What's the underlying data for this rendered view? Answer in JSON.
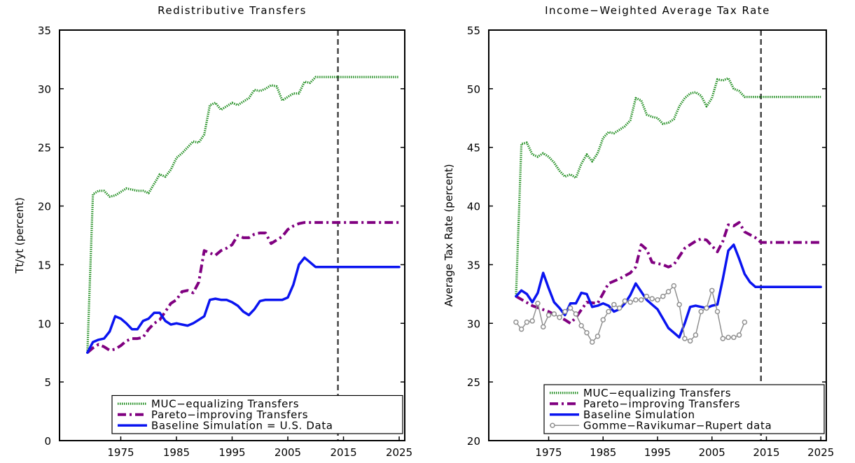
{
  "chart_data": [
    {
      "type": "line",
      "title": "Redistributive Transfers",
      "ylabel": "Tt/yt (percent)",
      "xlim": [
        1964,
        2026
      ],
      "xticks": [
        1975,
        1985,
        1995,
        2005,
        2015,
        2025
      ],
      "ylim": [
        0,
        35
      ],
      "yticks": [
        0,
        5,
        10,
        15,
        20,
        25,
        30,
        35
      ],
      "vline": 2014,
      "legend": "lower right",
      "series": [
        {
          "name": "MUC−equalizing Transfers",
          "color": "#1a8a1a",
          "style": "dotted",
          "x": [
            1969,
            1970,
            1971,
            1972,
            1973,
            1974,
            1975,
            1976,
            1977,
            1978,
            1979,
            1980,
            1981,
            1982,
            1983,
            1984,
            1985,
            1986,
            1987,
            1988,
            1989,
            1990,
            1991,
            1992,
            1993,
            1994,
            1995,
            1996,
            1997,
            1998,
            1999,
            2000,
            2001,
            2002,
            2003,
            2004,
            2005,
            2006,
            2007,
            2008,
            2009,
            2010,
            2011,
            2025
          ],
          "values": [
            7.5,
            21,
            21.3,
            21.3,
            20.8,
            20.9,
            21.2,
            21.5,
            21.4,
            21.3,
            21.3,
            21.1,
            21.9,
            22.7,
            22.5,
            23.1,
            24.1,
            24.5,
            25.0,
            25.5,
            25.4,
            26.1,
            28.6,
            28.8,
            28.2,
            28.5,
            28.8,
            28.6,
            28.9,
            29.2,
            29.9,
            29.8,
            30.0,
            30.3,
            30.2,
            29.0,
            29.3,
            29.6,
            29.6,
            30.6,
            30.5,
            31.0,
            31.0,
            31.0
          ]
        },
        {
          "name": "Pareto−improving Transfers",
          "color": "#800080",
          "style": "dashdot",
          "x": [
            1969,
            1970,
            1971,
            1972,
            1973,
            1974,
            1975,
            1976,
            1977,
            1978,
            1979,
            1980,
            1981,
            1982,
            1983,
            1984,
            1985,
            1986,
            1987,
            1988,
            1989,
            1990,
            1991,
            1992,
            1993,
            1994,
            1995,
            1996,
            1997,
            1998,
            1999,
            2000,
            2001,
            2002,
            2003,
            2004,
            2005,
            2006,
            2007,
            2008,
            2025
          ],
          "values": [
            7.5,
            7.9,
            8.2,
            8.0,
            7.7,
            7.8,
            8.1,
            8.5,
            8.7,
            8.7,
            8.8,
            9.5,
            10.0,
            10.3,
            11.0,
            11.7,
            12.0,
            12.7,
            12.8,
            12.6,
            13.5,
            16.2,
            16.0,
            15.8,
            16.2,
            16.4,
            16.7,
            17.5,
            17.3,
            17.3,
            17.6,
            17.7,
            17.7,
            16.8,
            17.1,
            17.4,
            18.0,
            18.3,
            18.5,
            18.6,
            18.6
          ]
        },
        {
          "name": "Baseline Simulation = U.S. Data",
          "color": "#0a14f0",
          "style": "solid",
          "x": [
            1969,
            1970,
            1971,
            1972,
            1973,
            1974,
            1975,
            1976,
            1977,
            1978,
            1979,
            1980,
            1981,
            1982,
            1983,
            1984,
            1985,
            1986,
            1987,
            1988,
            1989,
            1990,
            1991,
            1992,
            1993,
            1994,
            1995,
            1996,
            1997,
            1998,
            1999,
            2000,
            2001,
            2002,
            2003,
            2004,
            2005,
            2006,
            2007,
            2008,
            2009,
            2010,
            2011,
            2025
          ],
          "values": [
            7.5,
            8.4,
            8.6,
            8.7,
            9.3,
            10.6,
            10.4,
            10.0,
            9.5,
            9.5,
            10.2,
            10.4,
            10.9,
            10.9,
            10.2,
            9.9,
            10.0,
            9.9,
            9.8,
            10.0,
            10.3,
            10.6,
            12.0,
            12.1,
            12.0,
            12.0,
            11.8,
            11.5,
            11.0,
            10.7,
            11.2,
            11.9,
            12.0,
            12.0,
            12.0,
            12.0,
            12.2,
            13.3,
            15.0,
            15.6,
            15.2,
            14.8,
            14.8,
            14.8
          ]
        }
      ]
    },
    {
      "type": "line",
      "title": "Income−Weighted Average Tax Rate",
      "ylabel": "Average Tax Rate (percent)",
      "xlim": [
        1964,
        2026
      ],
      "xticks": [
        1975,
        1985,
        1995,
        2005,
        2015,
        2025
      ],
      "ylim": [
        20,
        55
      ],
      "yticks": [
        20,
        25,
        30,
        35,
        40,
        45,
        50,
        55
      ],
      "vline": 2014,
      "legend": "lower right",
      "series": [
        {
          "name": "MUC−equalizing Transfers",
          "color": "#1a8a1a",
          "style": "dotted",
          "x": [
            1969,
            1970,
            1971,
            1972,
            1973,
            1974,
            1975,
            1976,
            1977,
            1978,
            1979,
            1980,
            1981,
            1982,
            1983,
            1984,
            1985,
            1986,
            1987,
            1988,
            1989,
            1990,
            1991,
            1992,
            1993,
            1994,
            1995,
            1996,
            1997,
            1998,
            1999,
            2000,
            2001,
            2002,
            2003,
            2004,
            2005,
            2006,
            2007,
            2008,
            2009,
            2010,
            2011,
            2025
          ],
          "values": [
            32.3,
            45.3,
            45.4,
            44.4,
            44.2,
            44.5,
            44.2,
            43.7,
            43.0,
            42.5,
            42.7,
            42.4,
            43.6,
            44.4,
            43.8,
            44.5,
            45.8,
            46.3,
            46.2,
            46.5,
            46.8,
            47.3,
            49.2,
            49.0,
            47.8,
            47.6,
            47.5,
            47.0,
            47.1,
            47.4,
            48.5,
            49.2,
            49.6,
            49.7,
            49.4,
            48.5,
            49.2,
            50.8,
            50.7,
            50.9,
            50.0,
            49.8,
            49.3,
            49.3
          ]
        },
        {
          "name": "Pareto−improving Transfers",
          "color": "#800080",
          "style": "dashdot",
          "x": [
            1969,
            1972,
            1975,
            1978,
            1979,
            1980,
            1982,
            1984,
            1986,
            1988,
            1990,
            1991,
            1992,
            1993,
            1994,
            1996,
            1997,
            1998,
            2000,
            2002,
            2003,
            2004,
            2006,
            2007,
            2008,
            2009,
            2010,
            2011,
            2013,
            2014,
            2025
          ],
          "values": [
            32.3,
            31.5,
            31.0,
            30.3,
            30.0,
            30.5,
            31.8,
            31.7,
            33.4,
            33.8,
            34.3,
            34.8,
            36.7,
            36.3,
            35.2,
            35.0,
            34.8,
            35.0,
            36.4,
            37.0,
            37.2,
            37.1,
            36.1,
            37.0,
            38.4,
            38.3,
            38.6,
            37.8,
            37.3,
            36.9,
            36.9
          ]
        },
        {
          "name": "Baseline Simulation",
          "color": "#0a14f0",
          "style": "solid",
          "x": [
            1969,
            1970,
            1971,
            1972,
            1973,
            1974,
            1975,
            1976,
            1977,
            1978,
            1979,
            1980,
            1981,
            1982,
            1983,
            1984,
            1985,
            1986,
            1987,
            1988,
            1989,
            1990,
            1991,
            1992,
            1993,
            1994,
            1995,
            1996,
            1997,
            1998,
            1999,
            2000,
            2001,
            2002,
            2003,
            2004,
            2005,
            2006,
            2007,
            2008,
            2009,
            2010,
            2011,
            2012,
            2013,
            2025
          ],
          "values": [
            32.3,
            32.8,
            32.5,
            31.8,
            32.6,
            34.3,
            33.0,
            31.8,
            31.3,
            30.7,
            31.7,
            31.7,
            32.6,
            32.5,
            31.4,
            31.5,
            31.7,
            31.5,
            31.0,
            31.2,
            31.7,
            32.4,
            33.4,
            32.7,
            32.0,
            31.6,
            31.2,
            30.4,
            29.6,
            29.2,
            28.8,
            30.0,
            31.4,
            31.5,
            31.4,
            31.3,
            31.5,
            31.6,
            33.8,
            36.2,
            36.7,
            35.5,
            34.2,
            33.5,
            33.1,
            33.1
          ]
        },
        {
          "name": "Gomme−Ravikumar−Rupert data",
          "color": "#909090",
          "style": "marker",
          "x": [
            1969,
            1970,
            1971,
            1972,
            1973,
            1974,
            1975,
            1976,
            1977,
            1978,
            1979,
            1980,
            1981,
            1982,
            1983,
            1984,
            1985,
            1986,
            1987,
            1988,
            1989,
            1990,
            1991,
            1992,
            1993,
            1994,
            1995,
            1996,
            1997,
            1998,
            1999,
            2000,
            2001,
            2002,
            2003,
            2004,
            2005,
            2006,
            2007,
            2008,
            2009,
            2010,
            2011
          ],
          "values": [
            30.1,
            29.5,
            30.1,
            30.2,
            31.7,
            29.7,
            30.7,
            30.8,
            30.5,
            31.0,
            31.3,
            30.8,
            29.8,
            29.2,
            28.4,
            28.9,
            30.3,
            31.0,
            31.6,
            31.3,
            31.9,
            31.8,
            32.0,
            32.0,
            32.3,
            32.1,
            32.0,
            32.3,
            32.7,
            33.2,
            31.6,
            28.7,
            28.5,
            29.0,
            31.0,
            31.3,
            32.8,
            31.0,
            28.7,
            28.8,
            28.8,
            29.0,
            30.1
          ]
        }
      ]
    }
  ]
}
